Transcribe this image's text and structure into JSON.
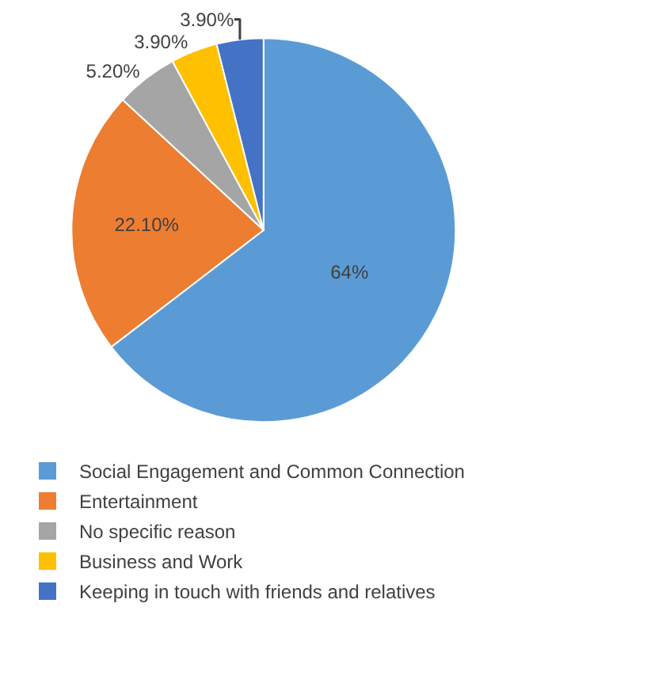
{
  "chart_data": {
    "type": "pie",
    "categories": [
      "Social Engagement and Common Connection",
      "Entertainment",
      "No specific reason",
      "Business and Work",
      "Keeping in touch with friends and relatives"
    ],
    "values": [
      64,
      22.1,
      5.2,
      3.9,
      3.9
    ],
    "value_labels": [
      "64%",
      "22.10%",
      "5.20%",
      "3.90%",
      "3.90%"
    ],
    "colors": [
      "#5b9bd5",
      "#ed7d31",
      "#a5a5a5",
      "#ffc000",
      "#4472c4"
    ],
    "legend": "bottom"
  }
}
